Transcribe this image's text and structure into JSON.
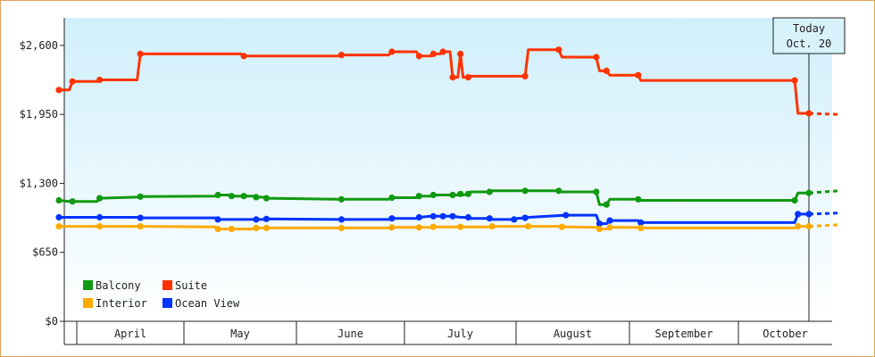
{
  "chart_data": {
    "type": "line",
    "title": "",
    "xlabel": "",
    "ylabel": "",
    "ylim": [
      0,
      2860
    ],
    "yticks": [
      {
        "value": 0,
        "label": "$0"
      },
      {
        "value": 650,
        "label": "$650"
      },
      {
        "value": 1300,
        "label": "$1,300"
      },
      {
        "value": 1950,
        "label": "$1,950"
      },
      {
        "value": 2600,
        "label": "$2,600"
      }
    ],
    "xlim": [
      -0.95,
      6.14
    ],
    "months": [
      "April",
      "May",
      "June",
      "July",
      "August",
      "September",
      "October"
    ],
    "month_edges": [
      -0.85,
      0.0,
      1.0,
      2.0,
      3.0,
      4.0,
      5.0,
      6.0
    ],
    "today": {
      "x": 5.79,
      "label_line1": "Today",
      "label_line2": "Oct. 20"
    },
    "grid": false,
    "legend_position": "bottom-left",
    "colors": {
      "Balcony": "#119911",
      "Suite": "#ff3300",
      "Interior": "#ffaa00",
      "Ocean View": "#0033ff",
      "plot_bg_top": "#cfeffb",
      "plot_bg_bottom": "#ffffff"
    },
    "series": [
      {
        "name": "Suite",
        "color": "#ff3300",
        "points": [
          [
            -0.84,
            2180
          ],
          [
            -0.68,
            2180
          ],
          [
            -0.63,
            2260
          ],
          [
            -0.25,
            2260
          ],
          [
            -0.21,
            2275
          ],
          [
            0.37,
            2275
          ],
          [
            0.42,
            2520
          ],
          [
            1.97,
            2520
          ],
          [
            2.02,
            2500
          ],
          [
            3.48,
            2500
          ],
          [
            3.53,
            2510
          ],
          [
            4.26,
            2510
          ],
          [
            4.31,
            2540
          ],
          [
            4.69,
            2540
          ],
          [
            4.73,
            2500
          ],
          [
            4.91,
            2500
          ],
          [
            4.95,
            2520
          ],
          [
            5.06,
            2520
          ],
          [
            5.1,
            2540
          ],
          [
            5.21,
            2540
          ],
          [
            5.25,
            2300
          ],
          [
            5.33,
            2300
          ],
          [
            5.37,
            2520
          ],
          [
            5.41,
            2300
          ],
          [
            5.49,
            2300
          ],
          [
            5.53,
            2310
          ],
          [
            6.37,
            2310
          ],
          [
            6.42,
            2560
          ],
          [
            6.89,
            2560
          ],
          [
            6.94,
            2490
          ],
          [
            7.47,
            2490
          ],
          [
            7.52,
            2360
          ],
          [
            7.63,
            2360
          ],
          [
            7.68,
            2320
          ],
          [
            8.12,
            2320
          ],
          [
            8.16,
            2270
          ],
          [
            10.54,
            2270
          ],
          [
            10.59,
            1960
          ],
          [
            10.76,
            1960
          ]
        ],
        "forecast": [
          [
            10.76,
            1960
          ],
          [
            11.22,
            1950
          ]
        ]
      },
      {
        "name": "Balcony",
        "color": "#119911",
        "points": [
          [
            -0.84,
            1140
          ],
          [
            -0.68,
            1130
          ],
          [
            -0.63,
            1130
          ],
          [
            -0.25,
            1130
          ],
          [
            -0.21,
            1160
          ],
          [
            0.37,
            1170
          ],
          [
            0.42,
            1175
          ],
          [
            1.58,
            1180
          ],
          [
            1.62,
            1190
          ],
          [
            1.79,
            1190
          ],
          [
            1.83,
            1180
          ],
          [
            1.97,
            1180
          ],
          [
            2.02,
            1180
          ],
          [
            2.16,
            1180
          ],
          [
            2.21,
            1170
          ],
          [
            2.33,
            1170
          ],
          [
            2.37,
            1160
          ],
          [
            3.48,
            1150
          ],
          [
            3.53,
            1150
          ],
          [
            4.26,
            1150
          ],
          [
            4.31,
            1165
          ],
          [
            4.69,
            1165
          ],
          [
            4.73,
            1180
          ],
          [
            4.91,
            1180
          ],
          [
            4.95,
            1190
          ],
          [
            5.21,
            1190
          ],
          [
            5.25,
            1190
          ],
          [
            5.33,
            1190
          ],
          [
            5.37,
            1200
          ],
          [
            5.41,
            1190
          ],
          [
            5.49,
            1200
          ],
          [
            5.53,
            1220
          ],
          [
            5.82,
            1220
          ],
          [
            5.86,
            1230
          ],
          [
            6.37,
            1230
          ],
          [
            6.42,
            1230
          ],
          [
            6.89,
            1230
          ],
          [
            6.94,
            1220
          ],
          [
            7.47,
            1220
          ],
          [
            7.52,
            1100
          ],
          [
            7.63,
            1100
          ],
          [
            7.68,
            1150
          ],
          [
            8.12,
            1150
          ],
          [
            8.16,
            1140
          ],
          [
            10.54,
            1140
          ],
          [
            10.59,
            1210
          ],
          [
            10.76,
            1210
          ]
        ],
        "forecast": [
          [
            10.76,
            1210
          ],
          [
            11.22,
            1230
          ]
        ]
      },
      {
        "name": "Ocean View",
        "color": "#0033ff",
        "points": [
          [
            -0.84,
            980
          ],
          [
            -0.25,
            980
          ],
          [
            -0.21,
            980
          ],
          [
            0.37,
            980
          ],
          [
            0.42,
            975
          ],
          [
            1.58,
            975
          ],
          [
            1.62,
            960
          ],
          [
            2.16,
            960
          ],
          [
            2.21,
            960
          ],
          [
            2.33,
            960
          ],
          [
            2.37,
            965
          ],
          [
            3.48,
            960
          ],
          [
            3.53,
            960
          ],
          [
            4.26,
            960
          ],
          [
            4.31,
            970
          ],
          [
            4.69,
            970
          ],
          [
            4.73,
            980
          ],
          [
            4.91,
            990
          ],
          [
            4.95,
            990
          ],
          [
            5.06,
            990
          ],
          [
            5.1,
            990
          ],
          [
            5.21,
            990
          ],
          [
            5.25,
            990
          ],
          [
            5.37,
            980
          ],
          [
            5.49,
            980
          ],
          [
            5.53,
            970
          ],
          [
            5.82,
            970
          ],
          [
            5.86,
            960
          ],
          [
            6.2,
            960
          ],
          [
            6.24,
            970
          ],
          [
            6.37,
            975
          ],
          [
            6.42,
            980
          ],
          [
            7.0,
            1000
          ],
          [
            7.47,
            1000
          ],
          [
            7.52,
            920
          ],
          [
            7.63,
            920
          ],
          [
            7.68,
            950
          ],
          [
            8.12,
            950
          ],
          [
            8.16,
            930
          ],
          [
            10.54,
            930
          ],
          [
            10.59,
            1010
          ],
          [
            10.76,
            1010
          ]
        ],
        "forecast": [
          [
            10.76,
            1010
          ],
          [
            11.22,
            1020
          ]
        ]
      },
      {
        "name": "Interior",
        "color": "#ffaa00",
        "points": [
          [
            -0.84,
            895
          ],
          [
            -0.25,
            895
          ],
          [
            -0.21,
            895
          ],
          [
            0.37,
            895
          ],
          [
            0.42,
            895
          ],
          [
            1.58,
            890
          ],
          [
            1.62,
            870
          ],
          [
            1.79,
            870
          ],
          [
            1.83,
            870
          ],
          [
            2.16,
            870
          ],
          [
            2.21,
            880
          ],
          [
            2.33,
            880
          ],
          [
            2.37,
            880
          ],
          [
            3.48,
            880
          ],
          [
            3.53,
            880
          ],
          [
            4.26,
            880
          ],
          [
            4.31,
            885
          ],
          [
            4.69,
            885
          ],
          [
            4.73,
            885
          ],
          [
            4.91,
            885
          ],
          [
            4.95,
            890
          ],
          [
            5.33,
            890
          ],
          [
            5.37,
            890
          ],
          [
            5.82,
            890
          ],
          [
            5.86,
            895
          ],
          [
            6.37,
            895
          ],
          [
            6.42,
            895
          ],
          [
            6.89,
            895
          ],
          [
            6.94,
            890
          ],
          [
            7.47,
            885
          ],
          [
            7.52,
            870
          ],
          [
            7.63,
            870
          ],
          [
            7.68,
            885
          ],
          [
            8.12,
            885
          ],
          [
            8.16,
            880
          ],
          [
            10.54,
            880
          ],
          [
            10.59,
            895
          ],
          [
            10.76,
            895
          ]
        ],
        "forecast": [
          [
            10.76,
            895
          ],
          [
            11.22,
            910
          ]
        ]
      }
    ],
    "legend": [
      {
        "label": "Balcony",
        "color": "#119911"
      },
      {
        "label": "Suite",
        "color": "#ff3300"
      },
      {
        "label": "Interior",
        "color": "#ffaa00"
      },
      {
        "label": "Ocean View",
        "color": "#0033ff"
      }
    ]
  }
}
